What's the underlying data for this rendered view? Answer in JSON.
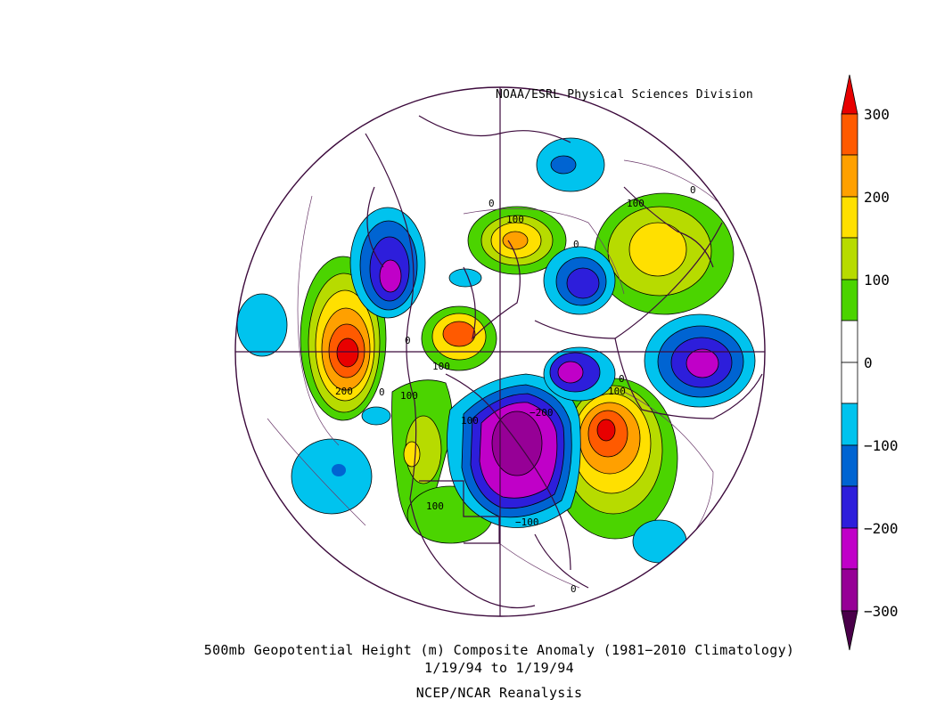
{
  "credit": "NOAA/ESRL Physical Sciences Division",
  "caption": {
    "line1": "500mb Geopotential Height (m) Composite Anomaly (1981−2010 Climatology)",
    "line2": "1/19/94  to 1/19/94",
    "line3": "NCEP/NCAR Reanalysis"
  },
  "colorbar": {
    "levels": [
      "300",
      "200",
      "100",
      "0",
      "−100",
      "−200",
      "−300"
    ],
    "colors": [
      "#e80000",
      "#ff5a00",
      "#ffa000",
      "#ffe000",
      "#b7db00",
      "#4bd400",
      "#ffffff",
      "#ffffff",
      "#00c3ee",
      "#0064d2",
      "#2d1edb",
      "#c000c8",
      "#960096",
      "#4a004a"
    ]
  },
  "contour_labels": [
    "0",
    "100",
    "0",
    "100",
    "0",
    "0",
    "100",
    "200",
    "0",
    "100",
    "100",
    "0",
    "100",
    "−200",
    "100",
    "−100",
    "0"
  ]
}
